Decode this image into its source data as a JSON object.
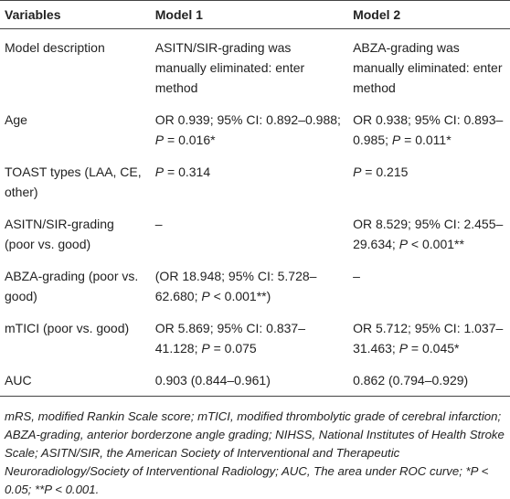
{
  "table": {
    "header": [
      "Variables",
      "Model 1",
      "Model 2"
    ],
    "rows": [
      [
        "Model description",
        "ASITN/SIR-grading was manually eliminated: enter method",
        "ABZA-grading was manually eliminated: enter method"
      ],
      [
        "Age",
        [
          {
            "text": "OR 0.939; 95% CI: 0.892–0.988; "
          },
          {
            "text": "P",
            "italic": true
          },
          {
            "text": " = 0.016*"
          }
        ],
        [
          {
            "text": "OR 0.938; 95% CI: 0.893–0.985; "
          },
          {
            "text": "P",
            "italic": true
          },
          {
            "text": " = 0.011*"
          }
        ]
      ],
      [
        "TOAST types (LAA, CE, other)",
        [
          {
            "text": "P",
            "italic": true
          },
          {
            "text": " = 0.314"
          }
        ],
        [
          {
            "text": "P",
            "italic": true
          },
          {
            "text": " = 0.215"
          }
        ]
      ],
      [
        "ASITN/SIR-grading (poor vs. good)",
        "–",
        [
          {
            "text": "OR 8.529; 95% CI: 2.455–29.634; "
          },
          {
            "text": "P",
            "italic": true
          },
          {
            "text": " < 0.001**"
          }
        ]
      ],
      [
        "ABZA-grading (poor vs. good)",
        [
          {
            "text": "(OR 18.948; 95% CI: 5.728–62.680; "
          },
          {
            "text": "P",
            "italic": true
          },
          {
            "text": " < 0.001**)"
          }
        ],
        "–"
      ],
      [
        "mTICI (poor vs. good)",
        [
          {
            "text": "OR 5.869; 95% CI: 0.837–41.128; "
          },
          {
            "text": "P",
            "italic": true
          },
          {
            "text": " = 0.075"
          }
        ],
        [
          {
            "text": "OR 5.712; 95% CI: 1.037–31.463; "
          },
          {
            "text": "P",
            "italic": true
          },
          {
            "text": " = 0.045*"
          }
        ]
      ],
      [
        "AUC",
        "0.903 (0.844–0.961)",
        "0.862 (0.794–0.929)"
      ]
    ],
    "footnote": "mRS, modified Rankin Scale score; mTICI, modified thrombolytic grade of cerebral infarction; ABZA-grading, anterior borderzone angle grading; NIHSS, National Institutes of Health Stroke Scale; ASITN/SIR, the American Society of Interventional and Therapeutic Neuroradiology/Society of Interventional Radiology; AUC, The area under ROC curve; *P < 0.05; **P < 0.001."
  }
}
